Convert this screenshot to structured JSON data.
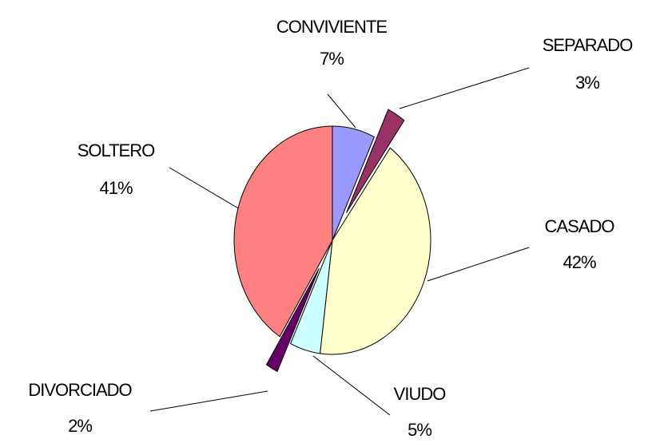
{
  "chart_data": {
    "type": "pie",
    "categories": [
      "CONVIVIENTE",
      "SEPARADO",
      "CASADO",
      "VIUDO",
      "DIVORCIADO",
      "SOLTERO"
    ],
    "values": [
      7,
      3,
      42,
      5,
      2,
      41
    ],
    "value_labels": [
      "7%",
      "3%",
      "42%",
      "5%",
      "2%",
      "41%"
    ],
    "colors": [
      "#9999ff",
      "#993366",
      "#ffffcc",
      "#ccffff",
      "#660066",
      "#ff8080"
    ],
    "exploded": [
      false,
      true,
      false,
      false,
      true,
      false
    ]
  }
}
